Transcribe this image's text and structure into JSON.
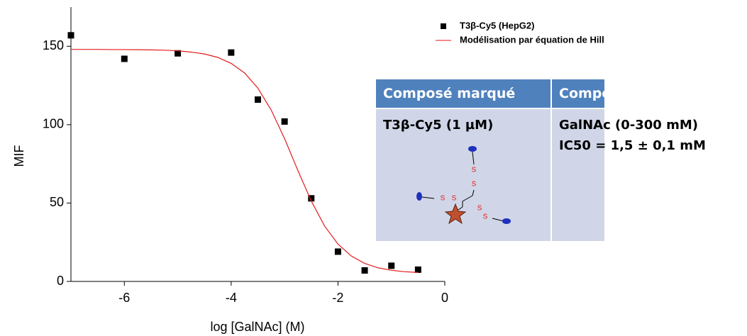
{
  "chart_data": {
    "type": "scatter",
    "xlabel": "log [GalNAc] (M)",
    "ylabel": "MIF",
    "xlim": [
      -7,
      0
    ],
    "ylim": [
      0,
      175
    ],
    "xticks": [
      -6,
      -4,
      -2,
      0
    ],
    "yticks": [
      0,
      50,
      100,
      150
    ],
    "series": [
      {
        "name": "T3β-Cy5 (HepG2)",
        "color": "#000000",
        "type": "scatter",
        "x": [
          -7,
          -6,
          -5,
          -4,
          -3.5,
          -3,
          -2.5,
          -2,
          -1.5,
          -1,
          -0.5
        ],
        "values": [
          157,
          142,
          145.5,
          146,
          116,
          102,
          53,
          19,
          7,
          10,
          7.5
        ]
      },
      {
        "name": "Modélisation par équation de Hill",
        "color": "#e41a1c",
        "type": "line",
        "x": [
          -7,
          -6.75,
          -6.5,
          -6.25,
          -6,
          -5.75,
          -5.5,
          -5.25,
          -5,
          -4.75,
          -4.5,
          -4.25,
          -4,
          -3.75,
          -3.5,
          -3.25,
          -3,
          -2.75,
          -2.5,
          -2.25,
          -2,
          -1.75,
          -1.5,
          -1.25,
          -1,
          -0.75,
          -0.5
        ],
        "values": [
          148,
          148,
          148,
          147.9,
          147.9,
          147.8,
          147.7,
          147.5,
          147.1,
          146.3,
          145.1,
          142.9,
          139.1,
          133,
          123.3,
          109.3,
          91.1,
          70.7,
          51.3,
          35.3,
          23.8,
          16.2,
          11.5,
          8.7,
          7.1,
          6.2,
          5.7
        ]
      }
    ]
  },
  "table": {
    "header": [
      "Composé marqué",
      "Compétiteur :"
    ],
    "cells": [
      "T3β-Cy5  (1 µM)",
      "GalNAc (0-300 mM)",
      "IC50 = 1,5 ± 0,1 mM"
    ]
  },
  "molecule": {
    "atoms": [
      "S",
      "S",
      "S",
      "S",
      "S",
      "S"
    ]
  }
}
